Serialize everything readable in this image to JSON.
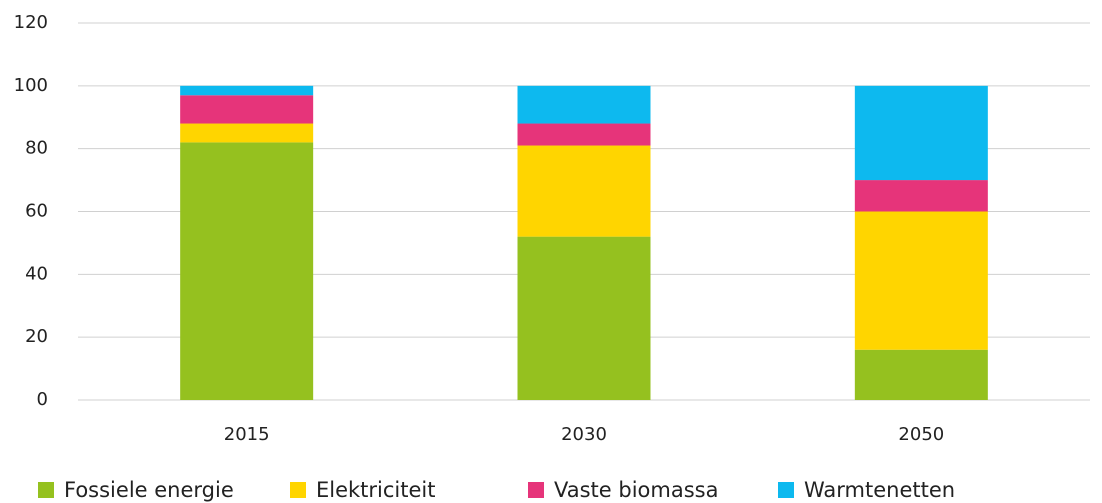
{
  "chart_data": {
    "type": "stacked_bar",
    "categories": [
      "2015",
      "2030",
      "2050"
    ],
    "series": [
      {
        "name": "Fossiele energie",
        "color": "#95c11f",
        "values": [
          82,
          52,
          16
        ]
      },
      {
        "name": "Elektriciteit",
        "color": "#ffd500",
        "values": [
          6,
          29,
          44
        ]
      },
      {
        "name": "Vaste biomassa",
        "color": "#e6347a",
        "values": [
          9,
          7,
          10
        ]
      },
      {
        "name": "Warmtenetten",
        "color": "#0db9ef",
        "values": [
          3,
          12,
          30
        ]
      }
    ],
    "ylim": [
      0,
      120
    ],
    "yticks": [
      0,
      20,
      40,
      60,
      80,
      100,
      120
    ],
    "grid": true,
    "legend": "bottom"
  }
}
